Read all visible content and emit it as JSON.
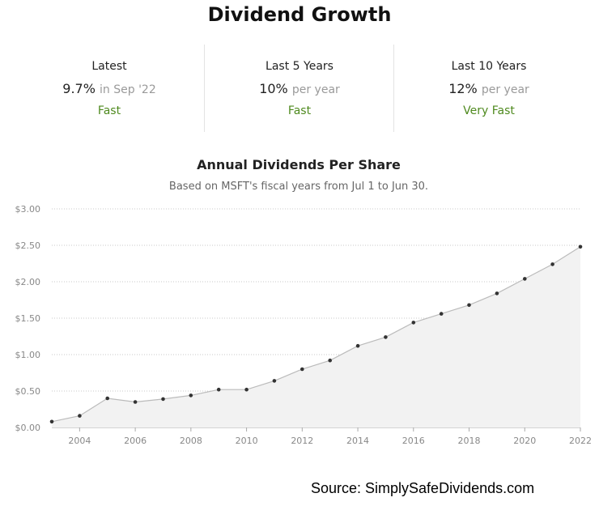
{
  "header": {
    "title": "Dividend Growth"
  },
  "stats": [
    {
      "label": "Latest",
      "value": "9.7%",
      "suffix": "in Sep '22",
      "rating": "Fast"
    },
    {
      "label": "Last 5 Years",
      "value": "10%",
      "suffix": "per year",
      "rating": "Fast"
    },
    {
      "label": "Last 10 Years",
      "value": "12%",
      "suffix": "per year",
      "rating": "Very Fast"
    }
  ],
  "colors": {
    "rating": "#4f8a1f",
    "area": "#f2f2f2",
    "line": "#bbbbbb",
    "point": "#333333"
  },
  "chart_data": {
    "type": "area",
    "title": "Annual Dividends Per Share",
    "subtitle": "Based on MSFT's fiscal years from Jul 1 to Jun 30.",
    "xlabel": "",
    "ylabel": "",
    "x": [
      2003,
      2004,
      2005,
      2006,
      2007,
      2008,
      2009,
      2010,
      2011,
      2012,
      2013,
      2014,
      2015,
      2016,
      2017,
      2018,
      2019,
      2020,
      2021,
      2022
    ],
    "values": [
      0.08,
      0.16,
      0.4,
      0.35,
      0.39,
      0.44,
      0.52,
      0.52,
      0.64,
      0.8,
      0.92,
      1.12,
      1.24,
      1.44,
      1.56,
      1.68,
      1.84,
      2.04,
      2.24,
      2.48
    ],
    "xticks": [
      "2004",
      "2006",
      "2008",
      "2010",
      "2012",
      "2014",
      "2016",
      "2018",
      "2020",
      "2022"
    ],
    "yticks": [
      "$0.00",
      "$0.50",
      "$1.00",
      "$1.50",
      "$2.00",
      "$2.50",
      "$3.00"
    ],
    "ylim": [
      0,
      3
    ],
    "xlim": [
      2003,
      2022
    ],
    "grid": true
  },
  "footer": {
    "source": "Source: SimplySafeDividends.com"
  }
}
